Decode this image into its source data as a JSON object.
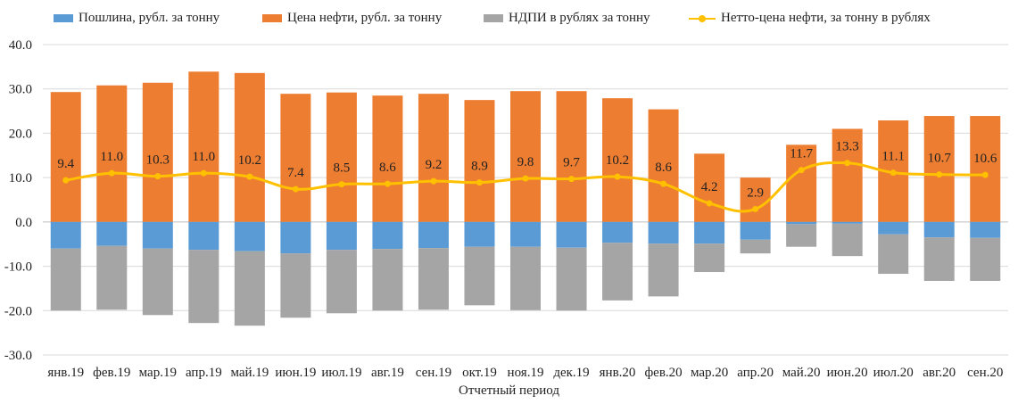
{
  "chart_data": {
    "type": "bar",
    "xlabel": "Отчетный период",
    "ylabel": "",
    "ylim": [
      -30,
      40
    ],
    "yticks": [
      "40.0",
      "30.0",
      "20.0",
      "10.0",
      "0.0",
      "-10.0",
      "-20.0",
      "-30.0"
    ],
    "ytick_values": [
      40,
      30,
      20,
      10,
      0,
      -10,
      -20,
      -30
    ],
    "grid": true,
    "legend_position": "top",
    "categories": [
      "янв.19",
      "фев.19",
      "мар.19",
      "апр.19",
      "май.19",
      "июн.19",
      "июл.19",
      "авг.19",
      "сен.19",
      "окт.19",
      "ноя.19",
      "дек.19",
      "янв.20",
      "фев.20",
      "мар.20",
      "апр.20",
      "май.20",
      "июн.20",
      "июл.20",
      "авг.20",
      "сен.20"
    ],
    "series": [
      {
        "name": "Пошлина, рубл. за тонну",
        "kind": "bar",
        "color": "#5B9BD5",
        "values": [
          -6.0,
          -5.4,
          -6.0,
          -6.3,
          -6.6,
          -7.1,
          -6.3,
          -6.1,
          -5.9,
          -5.6,
          -5.6,
          -5.8,
          -4.7,
          -4.9,
          -4.9,
          -4.0,
          -0.5,
          -0.4,
          -2.8,
          -3.5,
          -3.6
        ]
      },
      {
        "name": "Цена нефти, рубл. за тонну",
        "kind": "bar",
        "color": "#ED7D31",
        "values": [
          29.3,
          30.8,
          31.4,
          33.9,
          33.6,
          28.9,
          29.2,
          28.5,
          28.9,
          27.5,
          29.5,
          29.5,
          27.9,
          25.4,
          15.4,
          10.0,
          17.4,
          21.0,
          22.9,
          23.9,
          23.9
        ]
      },
      {
        "name": "НДПИ в рублях за тонну",
        "kind": "bar",
        "color": "#A5A5A5",
        "values": [
          -14.0,
          -14.4,
          -15.0,
          -16.5,
          -16.8,
          -14.5,
          -14.3,
          -13.9,
          -13.9,
          -13.2,
          -14.3,
          -14.2,
          -13.0,
          -11.9,
          -6.4,
          -3.1,
          -5.1,
          -7.3,
          -8.9,
          -9.8,
          -9.7
        ]
      },
      {
        "name": "Нетто-цена нефти, за тонну в рублях",
        "kind": "line",
        "color": "#FFC000",
        "values": [
          9.4,
          11.0,
          10.3,
          11.0,
          10.2,
          7.4,
          8.5,
          8.6,
          9.2,
          8.9,
          9.8,
          9.7,
          10.2,
          8.6,
          4.2,
          2.9,
          11.7,
          13.3,
          11.1,
          10.7,
          10.6
        ],
        "labels": [
          "9.4",
          "11.0",
          "10.3",
          "11.0",
          "10.2",
          "7.4",
          "8.5",
          "8.6",
          "9.2",
          "8.9",
          "9.8",
          "9.7",
          "10.2",
          "8.6",
          "4.2",
          "2.9",
          "11.7",
          "13.3",
          "11.1",
          "10.7",
          "10.6"
        ]
      }
    ]
  }
}
